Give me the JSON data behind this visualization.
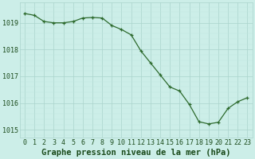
{
  "x": [
    0,
    1,
    2,
    3,
    4,
    5,
    6,
    7,
    8,
    9,
    10,
    11,
    12,
    13,
    14,
    15,
    16,
    17,
    18,
    19,
    20,
    21,
    22,
    23
  ],
  "y": [
    1019.35,
    1019.28,
    1019.05,
    1019.0,
    1019.0,
    1019.05,
    1019.18,
    1019.2,
    1019.18,
    1018.9,
    1018.75,
    1018.55,
    1017.95,
    1017.5,
    1017.05,
    1016.6,
    1016.45,
    1015.95,
    1015.3,
    1015.22,
    1015.28,
    1015.8,
    1016.05,
    1016.2
  ],
  "line_color": "#2d6a2d",
  "marker_color": "#2d6a2d",
  "bg_color": "#cceee8",
  "grid_major_color": "#aad4cc",
  "grid_minor_color": "#c0e8e0",
  "title": "Graphe pression niveau de la mer (hPa)",
  "ylabel_ticks": [
    1015,
    1016,
    1017,
    1018,
    1019
  ],
  "ylim": [
    1014.7,
    1019.75
  ],
  "xlim": [
    -0.5,
    23.5
  ],
  "xlabel_ticks": [
    0,
    1,
    2,
    3,
    4,
    5,
    6,
    7,
    8,
    9,
    10,
    11,
    12,
    13,
    14,
    15,
    16,
    17,
    18,
    19,
    20,
    21,
    22,
    23
  ],
  "title_fontsize": 7.5,
  "tick_fontsize": 6,
  "title_color": "#1a4a1a",
  "tick_color": "#1a4a1a"
}
